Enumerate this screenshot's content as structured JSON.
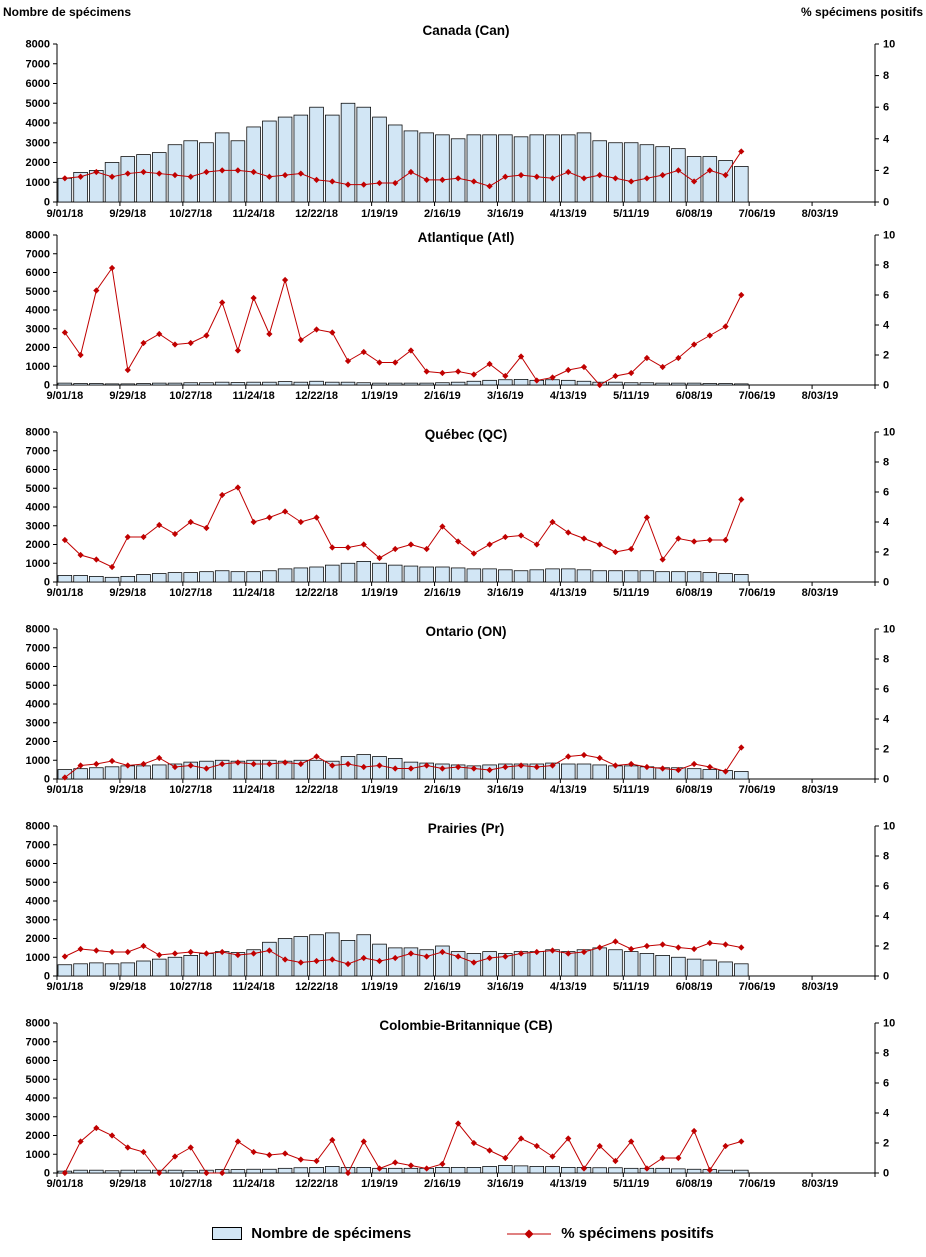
{
  "header": {
    "left_axis_title": "Nombre de spécimens",
    "right_axis_title": "% spécimens positifs"
  },
  "legend": {
    "bars": "Nombre de spécimens",
    "line": "% spécimens positifs"
  },
  "colors": {
    "bar_fill": "#d2e6f5",
    "bar_stroke": "#000000",
    "line": "#c00000"
  },
  "axes": {
    "left_ticks": [
      0,
      1000,
      2000,
      3000,
      4000,
      5000,
      6000,
      7000,
      8000
    ],
    "right_ticks": [
      0,
      2,
      4,
      6,
      8,
      10
    ],
    "x_tick_labels": [
      "9/01/18",
      "9/29/18",
      "10/27/18",
      "11/24/18",
      "12/22/18",
      "1/19/19",
      "2/16/19",
      "3/16/19",
      "4/13/19",
      "5/11/19",
      "6/08/19",
      "7/06/19",
      "8/03/19"
    ],
    "x_tick_every": 4,
    "x_total_weeks": 52
  },
  "chart_data": [
    {
      "id": "canada",
      "type": "bar+line",
      "title": "Canada (Can)",
      "ylim_left": [
        0,
        8000
      ],
      "ylim_right": [
        0,
        10
      ],
      "categories": [
        "9/01/18",
        "9/08/18",
        "9/15/18",
        "9/22/18",
        "9/29/18",
        "10/06/18",
        "10/13/18",
        "10/20/18",
        "10/27/18",
        "11/03/18",
        "11/10/18",
        "11/17/18",
        "11/24/18",
        "12/01/18",
        "12/08/18",
        "12/15/18",
        "12/22/18",
        "12/29/18",
        "1/05/19",
        "1/12/19",
        "1/19/19",
        "1/26/19",
        "2/02/19",
        "2/09/19",
        "2/16/19",
        "2/23/19",
        "3/02/19",
        "3/09/19",
        "3/16/19",
        "3/23/19",
        "3/30/19",
        "4/06/19",
        "4/13/19",
        "4/20/19",
        "4/27/19",
        "5/04/19",
        "5/11/19",
        "5/18/19",
        "5/25/19",
        "6/01/19",
        "6/08/19",
        "6/15/19",
        "6/22/19",
        "6/29/19"
      ],
      "series": [
        {
          "name": "Nombre de spécimens",
          "type": "bar",
          "axis": "left",
          "values": [
            1200,
            1500,
            1600,
            2000,
            2300,
            2400,
            2500,
            2900,
            3100,
            3000,
            3500,
            3100,
            3800,
            4100,
            4300,
            4400,
            4800,
            4400,
            5000,
            4800,
            4300,
            3900,
            3600,
            3500,
            3400,
            3200,
            3400,
            3400,
            3400,
            3300,
            3400,
            3400,
            3400,
            3500,
            3100,
            3000,
            3000,
            2900,
            2800,
            2700,
            2300,
            2300,
            2100,
            1800
          ]
        },
        {
          "name": "% spécimens positifs",
          "type": "line",
          "axis": "right",
          "values": [
            1.5,
            1.6,
            1.9,
            1.6,
            1.8,
            1.9,
            1.8,
            1.7,
            1.6,
            1.9,
            2.0,
            2.0,
            1.9,
            1.6,
            1.7,
            1.8,
            1.4,
            1.3,
            1.1,
            1.1,
            1.2,
            1.2,
            1.9,
            1.4,
            1.4,
            1.5,
            1.3,
            1.0,
            1.6,
            1.7,
            1.6,
            1.5,
            1.9,
            1.5,
            1.7,
            1.5,
            1.3,
            1.5,
            1.7,
            2.0,
            1.3,
            2.0,
            1.7,
            3.2
          ]
        }
      ]
    },
    {
      "id": "atlantique",
      "type": "bar+line",
      "title": "Atlantique (Atl)",
      "ylim_left": [
        0,
        8000
      ],
      "ylim_right": [
        0,
        10
      ],
      "categories": [
        "9/01/18",
        "9/08/18",
        "9/15/18",
        "9/22/18",
        "9/29/18",
        "10/06/18",
        "10/13/18",
        "10/20/18",
        "10/27/18",
        "11/03/18",
        "11/10/18",
        "11/17/18",
        "11/24/18",
        "12/01/18",
        "12/08/18",
        "12/15/18",
        "12/22/18",
        "12/29/18",
        "1/05/19",
        "1/12/19",
        "1/19/19",
        "1/26/19",
        "2/02/19",
        "2/09/19",
        "2/16/19",
        "2/23/19",
        "3/02/19",
        "3/09/19",
        "3/16/19",
        "3/23/19",
        "3/30/19",
        "4/06/19",
        "4/13/19",
        "4/20/19",
        "4/27/19",
        "5/04/19",
        "5/11/19",
        "5/18/19",
        "5/25/19",
        "6/01/19",
        "6/08/19",
        "6/15/19",
        "6/22/19",
        "6/29/19"
      ],
      "series": [
        {
          "name": "Nombre de spécimens",
          "type": "bar",
          "axis": "left",
          "values": [
            100,
            80,
            80,
            60,
            60,
            80,
            100,
            100,
            120,
            120,
            150,
            130,
            150,
            150,
            180,
            150,
            200,
            150,
            150,
            120,
            100,
            100,
            100,
            100,
            120,
            150,
            200,
            250,
            280,
            300,
            250,
            280,
            250,
            200,
            150,
            150,
            120,
            120,
            100,
            100,
            100,
            80,
            80,
            60
          ]
        },
        {
          "name": "% spécimens positifs",
          "type": "line",
          "axis": "right",
          "values": [
            3.5,
            2.0,
            6.3,
            7.8,
            1.0,
            2.8,
            3.4,
            2.7,
            2.8,
            3.3,
            5.5,
            2.3,
            5.8,
            3.4,
            7.0,
            3.0,
            3.7,
            3.5,
            1.6,
            2.2,
            1.5,
            1.5,
            2.3,
            0.9,
            0.8,
            0.9,
            0.7,
            1.4,
            0.6,
            1.9,
            0.3,
            0.5,
            1.0,
            1.2,
            0.0,
            0.6,
            0.8,
            1.8,
            1.2,
            1.8,
            2.7,
            3.3,
            3.9,
            6.0
          ]
        }
      ]
    },
    {
      "id": "quebec",
      "type": "bar+line",
      "title": "Québec (QC)",
      "ylim_left": [
        0,
        8000
      ],
      "ylim_right": [
        0,
        10
      ],
      "categories": [
        "9/01/18",
        "9/08/18",
        "9/15/18",
        "9/22/18",
        "9/29/18",
        "10/06/18",
        "10/13/18",
        "10/20/18",
        "10/27/18",
        "11/03/18",
        "11/10/18",
        "11/17/18",
        "11/24/18",
        "12/01/18",
        "12/08/18",
        "12/15/18",
        "12/22/18",
        "12/29/18",
        "1/05/19",
        "1/12/19",
        "1/19/19",
        "1/26/19",
        "2/02/19",
        "2/09/19",
        "2/16/19",
        "2/23/19",
        "3/02/19",
        "3/09/19",
        "3/16/19",
        "3/23/19",
        "3/30/19",
        "4/06/19",
        "4/13/19",
        "4/20/19",
        "4/27/19",
        "5/04/19",
        "5/11/19",
        "5/18/19",
        "5/25/19",
        "6/01/19",
        "6/08/19",
        "6/15/19",
        "6/22/19",
        "6/29/19"
      ],
      "series": [
        {
          "name": "Nombre de spécimens",
          "type": "bar",
          "axis": "left",
          "values": [
            350,
            350,
            300,
            250,
            300,
            400,
            450,
            500,
            500,
            550,
            600,
            550,
            550,
            600,
            700,
            750,
            800,
            900,
            1000,
            1100,
            1000,
            900,
            850,
            800,
            800,
            750,
            700,
            700,
            650,
            600,
            650,
            700,
            700,
            650,
            600,
            600,
            600,
            600,
            550,
            550,
            550,
            500,
            450,
            400
          ]
        },
        {
          "name": "% spécimens positifs",
          "type": "line",
          "axis": "right",
          "values": [
            2.8,
            1.8,
            1.5,
            1.0,
            3.0,
            3.0,
            3.8,
            3.2,
            4.0,
            3.6,
            5.8,
            6.3,
            4.0,
            4.3,
            4.7,
            4.0,
            4.3,
            2.3,
            2.3,
            2.5,
            1.6,
            2.2,
            2.5,
            2.2,
            3.7,
            2.7,
            1.9,
            2.5,
            3.0,
            3.1,
            2.5,
            4.0,
            3.3,
            2.9,
            2.5,
            2.0,
            2.2,
            4.3,
            1.5,
            2.9,
            2.7,
            2.8,
            2.8,
            5.5
          ]
        }
      ]
    },
    {
      "id": "ontario",
      "type": "bar+line",
      "title": "Ontario (ON)",
      "ylim_left": [
        0,
        8000
      ],
      "ylim_right": [
        0,
        10
      ],
      "categories": [
        "9/01/18",
        "9/08/18",
        "9/15/18",
        "9/22/18",
        "9/29/18",
        "10/06/18",
        "10/13/18",
        "10/20/18",
        "10/27/18",
        "11/03/18",
        "11/10/18",
        "11/17/18",
        "11/24/18",
        "12/01/18",
        "12/08/18",
        "12/15/18",
        "12/22/18",
        "12/29/18",
        "1/05/19",
        "1/12/19",
        "1/19/19",
        "1/26/19",
        "2/02/19",
        "2/09/19",
        "2/16/19",
        "2/23/19",
        "3/02/19",
        "3/09/19",
        "3/16/19",
        "3/23/19",
        "3/30/19",
        "4/06/19",
        "4/13/19",
        "4/20/19",
        "4/27/19",
        "5/04/19",
        "5/11/19",
        "5/18/19",
        "5/25/19",
        "6/01/19",
        "6/08/19",
        "6/15/19",
        "6/22/19",
        "6/29/19"
      ],
      "series": [
        {
          "name": "Nombre de spécimens",
          "type": "bar",
          "axis": "left",
          "values": [
            500,
            550,
            600,
            650,
            700,
            700,
            750,
            800,
            900,
            950,
            1000,
            950,
            1000,
            1000,
            950,
            1000,
            1000,
            950,
            1200,
            1300,
            1200,
            1100,
            900,
            850,
            800,
            750,
            700,
            750,
            800,
            800,
            800,
            850,
            800,
            800,
            750,
            700,
            700,
            650,
            600,
            600,
            550,
            500,
            450,
            400
          ]
        },
        {
          "name": "% spécimens positifs",
          "type": "line",
          "axis": "right",
          "values": [
            0.1,
            0.9,
            1.0,
            1.2,
            0.9,
            1.0,
            1.4,
            0.8,
            0.9,
            0.7,
            1.0,
            1.1,
            1.0,
            1.0,
            1.1,
            1.0,
            1.5,
            0.9,
            1.0,
            0.8,
            0.9,
            0.7,
            0.7,
            0.9,
            0.7,
            0.8,
            0.7,
            0.6,
            0.8,
            0.9,
            0.8,
            0.9,
            1.5,
            1.6,
            1.4,
            0.9,
            1.0,
            0.8,
            0.7,
            0.6,
            1.0,
            0.8,
            0.5,
            2.1
          ]
        }
      ]
    },
    {
      "id": "prairies",
      "type": "bar+line",
      "title": "Prairies (Pr)",
      "ylim_left": [
        0,
        8000
      ],
      "ylim_right": [
        0,
        10
      ],
      "categories": [
        "9/01/18",
        "9/08/18",
        "9/15/18",
        "9/22/18",
        "9/29/18",
        "10/06/18",
        "10/13/18",
        "10/20/18",
        "10/27/18",
        "11/03/18",
        "11/10/18",
        "11/17/18",
        "11/24/18",
        "12/01/18",
        "12/08/18",
        "12/15/18",
        "12/22/18",
        "12/29/18",
        "1/05/19",
        "1/12/19",
        "1/19/19",
        "1/26/19",
        "2/02/19",
        "2/09/19",
        "2/16/19",
        "2/23/19",
        "3/02/19",
        "3/09/19",
        "3/16/19",
        "3/23/19",
        "3/30/19",
        "4/06/19",
        "4/13/19",
        "4/20/19",
        "4/27/19",
        "5/04/19",
        "5/11/19",
        "5/18/19",
        "5/25/19",
        "6/01/19",
        "6/08/19",
        "6/15/19",
        "6/22/19",
        "6/29/19"
      ],
      "series": [
        {
          "name": "Nombre de spécimens",
          "type": "bar",
          "axis": "left",
          "values": [
            600,
            650,
            700,
            650,
            700,
            800,
            900,
            1000,
            1100,
            1200,
            1300,
            1250,
            1400,
            1800,
            2000,
            2100,
            2200,
            2300,
            1900,
            2200,
            1700,
            1500,
            1500,
            1400,
            1600,
            1300,
            1200,
            1300,
            1200,
            1300,
            1300,
            1400,
            1300,
            1400,
            1500,
            1400,
            1300,
            1200,
            1100,
            1000,
            900,
            850,
            750,
            650
          ]
        },
        {
          "name": "% spécimens positifs",
          "type": "line",
          "axis": "right",
          "values": [
            1.3,
            1.8,
            1.7,
            1.6,
            1.6,
            2.0,
            1.4,
            1.5,
            1.6,
            1.5,
            1.6,
            1.4,
            1.5,
            1.7,
            1.1,
            0.9,
            1.0,
            1.1,
            0.8,
            1.2,
            1.0,
            1.2,
            1.5,
            1.3,
            1.6,
            1.3,
            0.9,
            1.2,
            1.3,
            1.5,
            1.6,
            1.7,
            1.5,
            1.6,
            1.9,
            2.3,
            1.8,
            2.0,
            2.1,
            1.9,
            1.8,
            2.2,
            2.1,
            1.9
          ]
        }
      ]
    },
    {
      "id": "colombie-britannique",
      "type": "bar+line",
      "title": "Colombie-Britannique (CB)",
      "ylim_left": [
        0,
        8000
      ],
      "ylim_right": [
        0,
        10
      ],
      "categories": [
        "9/01/18",
        "9/08/18",
        "9/15/18",
        "9/22/18",
        "9/29/18",
        "10/06/18",
        "10/13/18",
        "10/20/18",
        "10/27/18",
        "11/03/18",
        "11/10/18",
        "11/17/18",
        "11/24/18",
        "12/01/18",
        "12/08/18",
        "12/15/18",
        "12/22/18",
        "12/29/18",
        "1/05/19",
        "1/12/19",
        "1/19/19",
        "1/26/19",
        "2/02/19",
        "2/09/19",
        "2/16/19",
        "2/23/19",
        "3/02/19",
        "3/09/19",
        "3/16/19",
        "3/23/19",
        "3/30/19",
        "4/06/19",
        "4/13/19",
        "4/20/19",
        "4/27/19",
        "5/04/19",
        "5/11/19",
        "5/18/19",
        "5/25/19",
        "6/01/19",
        "6/08/19",
        "6/15/19",
        "6/22/19",
        "6/29/19"
      ],
      "series": [
        {
          "name": "Nombre de spécimens",
          "type": "bar",
          "axis": "left",
          "values": [
            100,
            150,
            150,
            120,
            150,
            150,
            150,
            150,
            120,
            150,
            180,
            180,
            200,
            200,
            250,
            280,
            300,
            350,
            300,
            300,
            250,
            250,
            250,
            250,
            300,
            300,
            300,
            350,
            400,
            380,
            350,
            350,
            300,
            300,
            280,
            280,
            250,
            250,
            250,
            220,
            200,
            180,
            150,
            150
          ]
        },
        {
          "name": "% spécimens positifs",
          "type": "line",
          "axis": "right",
          "values": [
            0.0,
            2.1,
            3.0,
            2.5,
            1.7,
            1.4,
            0.0,
            1.1,
            1.7,
            0.0,
            0.0,
            2.1,
            1.4,
            1.2,
            1.3,
            0.9,
            0.8,
            2.2,
            0.0,
            2.1,
            0.3,
            0.7,
            0.5,
            0.3,
            0.6,
            3.3,
            2.0,
            1.5,
            1.0,
            2.3,
            1.8,
            1.1,
            2.3,
            0.3,
            1.8,
            0.8,
            2.1,
            0.3,
            1.0,
            1.0,
            2.8,
            0.2,
            1.8,
            2.1
          ]
        }
      ]
    }
  ]
}
